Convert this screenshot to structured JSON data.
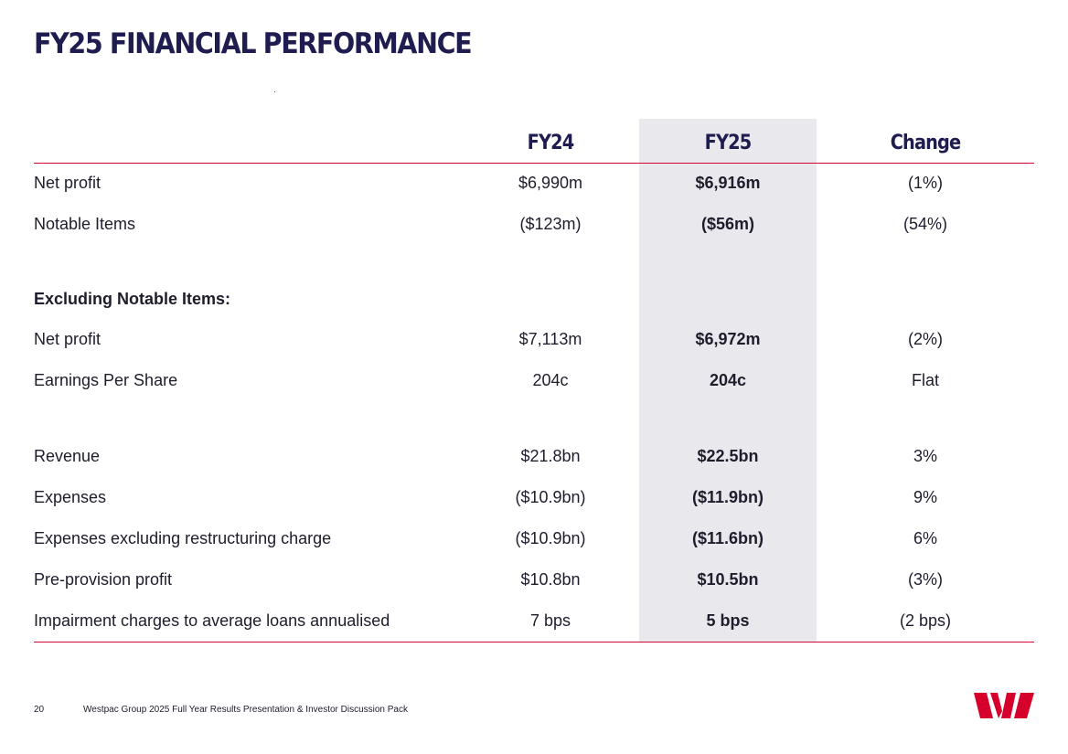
{
  "title": "FY25 FINANCIAL PERFORMANCE",
  "columns": {
    "fy24": "FY24",
    "fy25": "FY25",
    "change": "Change"
  },
  "rows": [
    {
      "label": "Net profit",
      "fy24": "$6,990m",
      "fy25": "$6,916m",
      "change": "(1%)"
    },
    {
      "label": "Notable Items",
      "fy24": "($123m)",
      "fy25": "($56m)",
      "change": "(54%)"
    },
    {
      "label": "Excluding Notable Items:",
      "fy24": "",
      "fy25": "",
      "change": ""
    },
    {
      "label": "Net profit",
      "fy24": "$7,113m",
      "fy25": "$6,972m",
      "change": "(2%)"
    },
    {
      "label": "Earnings Per Share",
      "fy24": "204c",
      "fy25": "204c",
      "change": "Flat"
    },
    {
      "label": "Revenue",
      "fy24": "$21.8bn",
      "fy25": "$22.5bn",
      "change": "3%"
    },
    {
      "label": "Expenses",
      "fy24": "($10.9bn)",
      "fy25": "($11.9bn)",
      "change": "9%"
    },
    {
      "label": "Expenses excluding restructuring charge",
      "fy24": "($10.9bn)",
      "fy25": "($11.6bn)",
      "change": "6%"
    },
    {
      "label": "Pre-provision profit",
      "fy24": "$10.8bn",
      "fy25": "$10.5bn",
      "change": "(3%)"
    },
    {
      "label": "Impairment charges to average loans annualised",
      "fy24": "7 bps",
      "fy25": "5 bps",
      "change": "(2 bps)"
    }
  ],
  "footer": {
    "page_number": "20",
    "text": "Westpac Group 2025 Full Year Results Presentation & Investor Discussion Pack"
  },
  "colors": {
    "accent": "#d5002b",
    "title": "#1f1c4f",
    "highlight": "#e9e8ec"
  },
  "logo": "westpac-logo"
}
